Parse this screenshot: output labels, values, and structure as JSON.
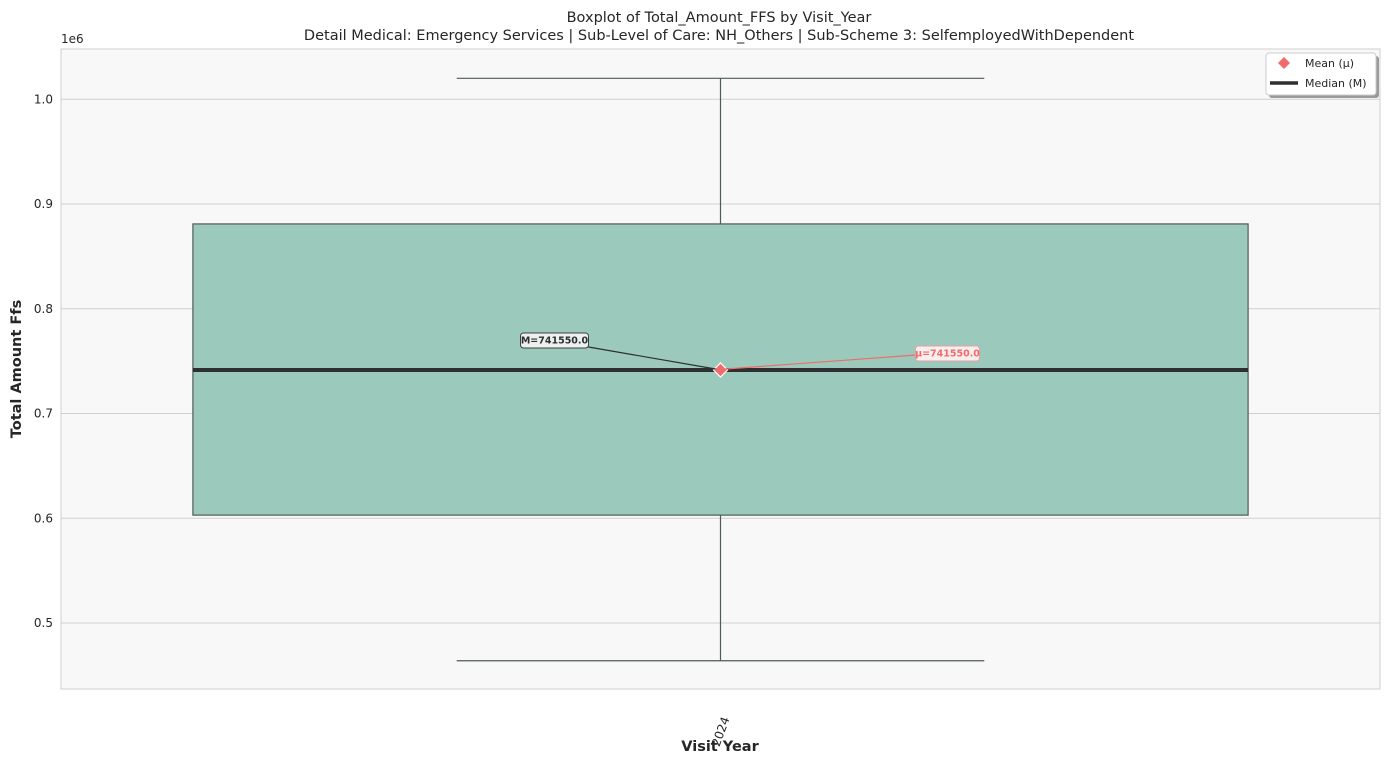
{
  "chart_data": {
    "type": "box",
    "title": "Boxplot of Total_Amount_FFS by Visit_Year",
    "subtitle": "Detail Medical: Emergency Services | Sub-Level of Care: NH_Others | Sub-Scheme 3: SelfemployedWithDependent",
    "xlabel": "Visit Year",
    "ylabel": "Total Amount Ffs",
    "offset_label": "1e6",
    "ylim": [
      437000,
      1048000
    ],
    "yticks": [
      0.5,
      0.6,
      0.7,
      0.8,
      0.9,
      1.0
    ],
    "ytick_labels": [
      "0.5",
      "0.6",
      "0.7",
      "0.8",
      "0.9",
      "1.0"
    ],
    "ytick_multiplier": 1000000,
    "categories": [
      "2024"
    ],
    "boxes": [
      {
        "category": "2024",
        "whisker_low": 464000,
        "q1": 603000,
        "median": 741550.0,
        "q3": 881000,
        "whisker_high": 1020000,
        "mean": 741550.0
      }
    ],
    "annotations": {
      "median_label": "M=741550.0",
      "mean_label": "μ=741550.0"
    },
    "legend": {
      "position": "top-right",
      "items": [
        {
          "label": "Mean (μ)",
          "marker": "diamond",
          "color": "#f26b6b"
        },
        {
          "label": "Median (M)",
          "marker": "line",
          "color": "#2d2f30"
        }
      ]
    },
    "grid": true,
    "colors": {
      "box_fill": "#9bc9bb",
      "box_edge": "#4f5b57",
      "median": "#2d2f30",
      "mean": "#f26b6b",
      "plot_bg": "#f8f8f8",
      "grid": "#cfcfcf"
    }
  }
}
